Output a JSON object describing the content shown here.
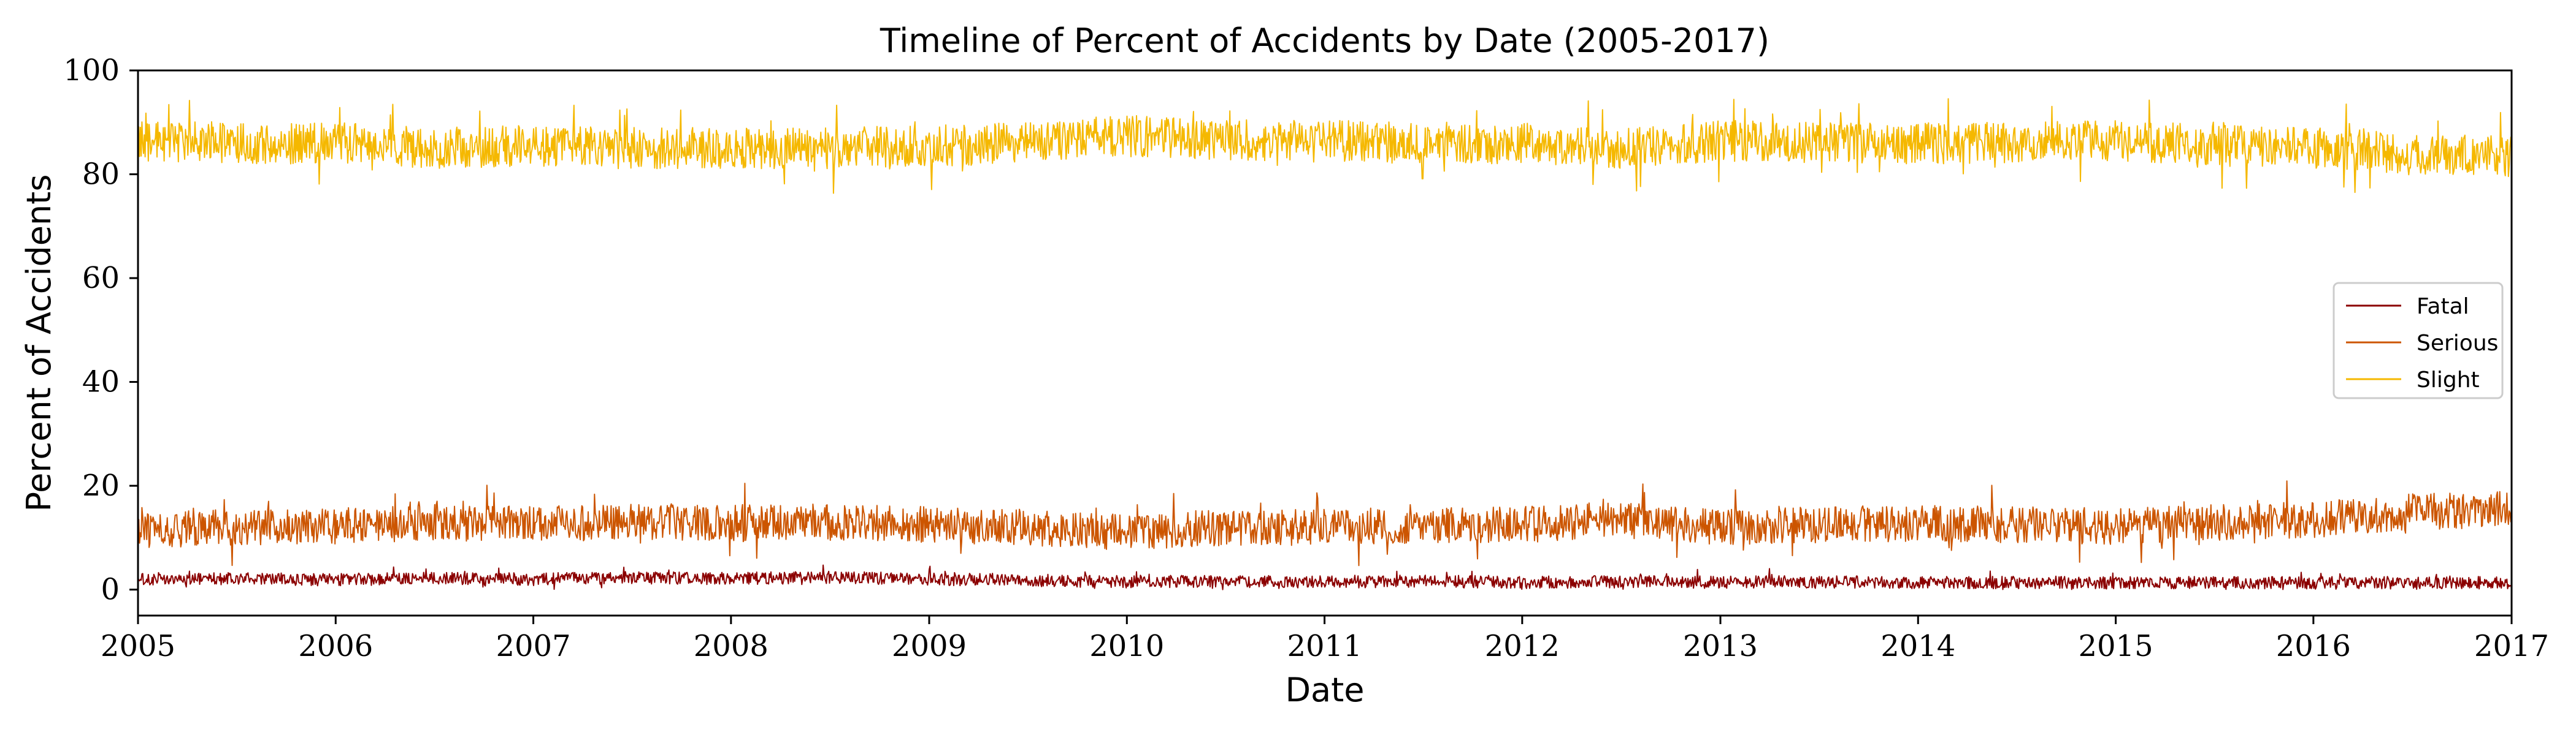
{
  "chart_data": {
    "type": "line",
    "title": "Timeline of Percent of Accidents by Date (2005-2017)",
    "xlabel": "Date",
    "ylabel": "Percent of Accidents",
    "xlim": [
      "2005-01-01",
      "2017-01-01"
    ],
    "ylim": [
      -5,
      100
    ],
    "x_ticks": [
      "2005",
      "2006",
      "2007",
      "2008",
      "2009",
      "2010",
      "2011",
      "2012",
      "2013",
      "2014",
      "2015",
      "2016",
      "2017"
    ],
    "y_ticks": [
      "0",
      "20",
      "40",
      "60",
      "80",
      "100"
    ],
    "grid": false,
    "legend_placement": "center-right",
    "x": [
      "2005-01-01",
      "2005-07-01",
      "2006-01-01",
      "2006-07-01",
      "2007-01-01",
      "2007-07-01",
      "2008-01-01",
      "2008-07-01",
      "2009-01-01",
      "2009-07-01",
      "2010-01-01",
      "2010-07-01",
      "2011-01-01",
      "2011-07-01",
      "2012-01-01",
      "2012-07-01",
      "2013-01-01",
      "2013-07-01",
      "2014-01-01",
      "2014-07-01",
      "2015-01-01",
      "2015-07-01",
      "2016-01-01",
      "2016-07-01",
      "2017-01-01"
    ],
    "series": [
      {
        "name": "Fatal",
        "color": "#8b0000",
        "values": [
          2.0,
          2.1,
          1.9,
          2.2,
          2.0,
          2.3,
          2.1,
          2.4,
          2.0,
          1.8,
          1.5,
          1.6,
          1.5,
          1.6,
          1.4,
          1.5,
          1.4,
          1.5,
          1.3,
          1.4,
          1.3,
          1.4,
          1.3,
          1.4,
          1.3
        ],
        "spread": 1.2
      },
      {
        "name": "Serious",
        "color": "#cc5500",
        "values": [
          11.5,
          12.0,
          12.2,
          13.0,
          12.5,
          13.2,
          12.8,
          13.0,
          12.5,
          12.0,
          11.0,
          12.0,
          12.0,
          12.5,
          12.5,
          13.5,
          12.0,
          12.5,
          12.8,
          12.5,
          12.2,
          13.0,
          13.5,
          15.0,
          15.5
        ],
        "spread": 3.5
      },
      {
        "name": "Slight",
        "color": "#f5b800",
        "values": [
          86.5,
          86.0,
          86.0,
          85.0,
          85.5,
          85.0,
          85.0,
          85.0,
          85.5,
          86.0,
          87.5,
          86.5,
          86.5,
          86.0,
          86.0,
          85.0,
          86.5,
          86.0,
          86.0,
          86.0,
          86.5,
          85.5,
          85.2,
          83.8,
          83.5
        ],
        "spread": 4.0
      }
    ]
  }
}
